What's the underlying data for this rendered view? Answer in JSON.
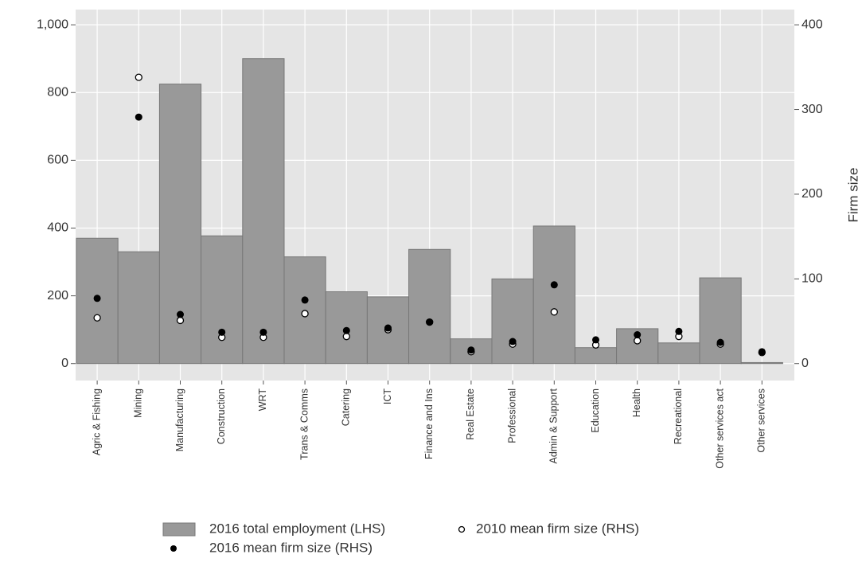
{
  "chart_data": {
    "type": "bar",
    "categories": [
      "Agric & Fishing",
      "Mining",
      "Manufacturing",
      "Construction",
      "WRT",
      "Trans & Comms",
      "Catering",
      "ICT",
      "Finance and Ins",
      "Real Estate",
      "Professional",
      "Admin & Support",
      "Education",
      "Health",
      "Recreational",
      "Other services act",
      "Other services"
    ],
    "series": [
      {
        "name": "2016 total employment (LHS)",
        "type": "bar",
        "color": "#999999",
        "values": [
          370,
          330,
          825,
          377,
          900,
          315,
          212,
          197,
          337,
          73,
          250,
          406,
          47,
          103,
          61,
          253,
          3
        ]
      },
      {
        "name": "2010 mean firm size (RHS)",
        "type": "open-dot",
        "axis": "y2",
        "color": "#000000",
        "values": [
          54,
          338,
          51,
          31,
          31,
          59,
          32,
          40,
          49,
          14,
          23,
          61,
          22,
          27,
          32,
          23,
          13
        ]
      },
      {
        "name": "2016 mean firm size (RHS)",
        "type": "dot",
        "axis": "y2",
        "color": "#000000",
        "values": [
          77,
          291,
          58,
          37,
          37,
          75,
          39,
          42,
          49,
          16,
          26,
          93,
          28,
          34,
          38,
          25,
          14
        ]
      }
    ],
    "y2_label": "Firm size",
    "ylim": [
      -50,
      1045
    ],
    "yticks": [
      0,
      200,
      400,
      600,
      800,
      {
        "value": 1000,
        "label": "1,000"
      }
    ],
    "y2lim": [
      -20,
      418
    ],
    "y2ticks": [
      0,
      100,
      200,
      300,
      400
    ],
    "grid": true,
    "legend": "bottom"
  }
}
